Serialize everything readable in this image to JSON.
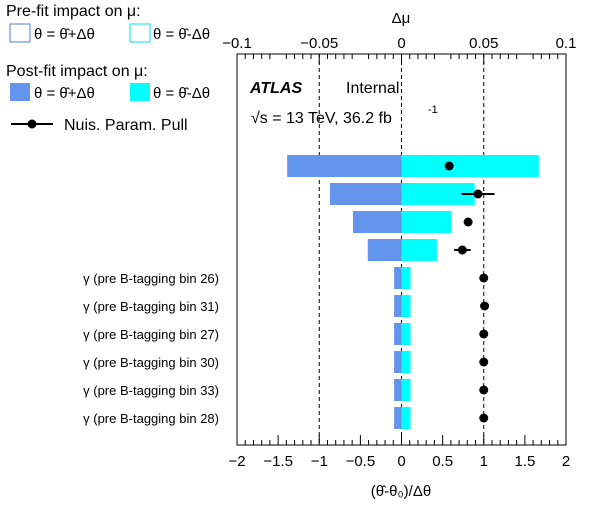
{
  "chart_data": {
    "type": "ranking",
    "legend": {
      "prefit_title": "Pre-fit impact on  μ:",
      "postfit_title": "Post-fit impact on  μ:",
      "up_label": "θ = θ̂+Δθ",
      "down_label": "θ = θ̂-Δθ",
      "pull_label": "Nuis. Param. Pull",
      "position": "top-left"
    },
    "atlas": {
      "brand": "ATLAS",
      "status": "Internal",
      "energy_text": "√s = 13 TeV, 36.2 fb",
      "energy_exp": "-1"
    },
    "bottom_axis": {
      "label": "(θ̂-θ₀)/Δθ",
      "range": [
        -2,
        2
      ],
      "ticks": [
        -2,
        -1.5,
        -1,
        -0.5,
        0,
        0.5,
        1,
        1.5,
        2
      ],
      "tick_labels": [
        "−2",
        "−1.5",
        "−1",
        "−0.5",
        "0",
        "0.5",
        "1",
        "1.5",
        "2"
      ]
    },
    "top_axis": {
      "label": "Δμ",
      "range": [
        -0.1,
        0.1
      ],
      "ticks": [
        -0.1,
        -0.05,
        0,
        0.05,
        0.1
      ],
      "tick_labels": [
        "−0.1",
        "−0.05",
        "0",
        "0.05",
        "0.1"
      ]
    },
    "reference_lines": [
      -1,
      0,
      1
    ],
    "parameters": [
      {
        "label": "",
        "postfit_up": -0.0695,
        "postfit_down": 0.0835,
        "pull": 0.58,
        "pull_err": 0.0
      },
      {
        "label": "",
        "postfit_up": -0.0435,
        "postfit_down": 0.0445,
        "pull": 0.93,
        "pull_err": 0.2
      },
      {
        "label": "",
        "postfit_up": -0.0295,
        "postfit_down": 0.0305,
        "pull": 0.81,
        "pull_err": 0.0
      },
      {
        "label": "",
        "postfit_up": -0.0205,
        "postfit_down": 0.0215,
        "pull": 0.74,
        "pull_err": 0.1
      },
      {
        "label": "γ (pre B-tagging bin 26)",
        "postfit_up": -0.0045,
        "postfit_down": 0.0055,
        "pull": 1.0,
        "pull_err": 0.0
      },
      {
        "label": "γ (pre B-tagging bin 31)",
        "postfit_up": -0.0045,
        "postfit_down": 0.0055,
        "pull": 1.01,
        "pull_err": 0.0
      },
      {
        "label": "γ (pre B-tagging bin 27)",
        "postfit_up": -0.0045,
        "postfit_down": 0.0055,
        "pull": 1.0,
        "pull_err": 0.0
      },
      {
        "label": "γ (pre B-tagging bin 30)",
        "postfit_up": -0.0045,
        "postfit_down": 0.0055,
        "pull": 1.0,
        "pull_err": 0.0
      },
      {
        "label": "γ (pre B-tagging bin 33)",
        "postfit_up": -0.0045,
        "postfit_down": 0.0055,
        "pull": 1.0,
        "pull_err": 0.0
      },
      {
        "label": "γ (pre B-tagging bin 28)",
        "postfit_up": -0.0045,
        "postfit_down": 0.0055,
        "pull": 1.0,
        "pull_err": 0.0
      }
    ],
    "colors": {
      "postfit_up": "#6495ed",
      "postfit_down": "#00ffff",
      "prefit_up": "#4d7ec9",
      "prefit_down": "#00e5ee",
      "marker": "#000000"
    }
  }
}
